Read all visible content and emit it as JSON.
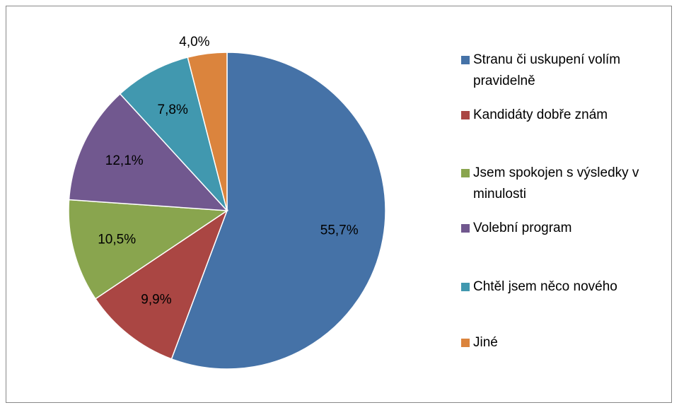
{
  "chart_data": {
    "type": "pie",
    "categories": [
      "Stranu či uskupení volím pravidelně",
      "Kandidáty dobře znám",
      "Jsem spokojen s výsledky v minulosti",
      "Volební program",
      "Chtěl jsem něco nového",
      "Jiné"
    ],
    "values": [
      55.7,
      9.9,
      10.5,
      12.1,
      7.8,
      4.0
    ],
    "value_labels": [
      "55,7%",
      "9,9%",
      "10,5%",
      "12,1%",
      "7,8%",
      "4,0%"
    ],
    "colors": [
      "#4572a7",
      "#aa4643",
      "#89a54e",
      "#71588f",
      "#4198af",
      "#db843d"
    ],
    "legend": "right"
  }
}
